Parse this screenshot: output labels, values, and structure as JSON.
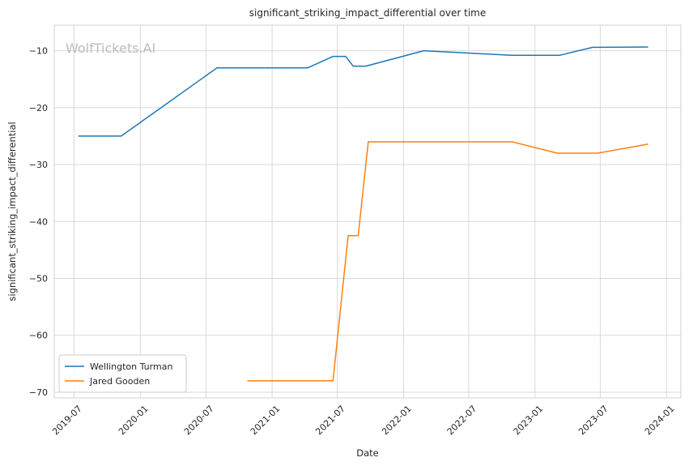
{
  "chart_data": {
    "type": "line",
    "title": "significant_striking_impact_differential over time",
    "xlabel": "Date",
    "ylabel": "significant_striking_impact_differential",
    "watermark": "WolfTickets.AI",
    "xlim": [
      "2019-05-07",
      "2024-02-10"
    ],
    "ylim": [
      -71,
      -5.5
    ],
    "x_ticks": [
      "2019-07",
      "2020-01",
      "2020-07",
      "2021-01",
      "2021-07",
      "2022-01",
      "2022-07",
      "2023-01",
      "2023-07",
      "2024-01"
    ],
    "y_ticks": [
      -10,
      -20,
      -30,
      -40,
      -50,
      -60,
      -70
    ],
    "y_tick_labels": [
      "−10",
      "−20",
      "−30",
      "−40",
      "−50",
      "−60",
      "−70"
    ],
    "grid": true,
    "legend_position": "lower-left",
    "series": [
      {
        "name": "Wellington Turman",
        "color": "#1f77b4",
        "points": [
          [
            "2019-07-13",
            -25.0
          ],
          [
            "2019-11-09",
            -25.0
          ],
          [
            "2020-08-01",
            -13.0
          ],
          [
            "2021-04-10",
            -13.0
          ],
          [
            "2021-06-19",
            -11.0
          ],
          [
            "2021-07-24",
            -11.0
          ],
          [
            "2021-08-14",
            -12.7
          ],
          [
            "2021-09-18",
            -12.7
          ],
          [
            "2022-02-26",
            -10.0
          ],
          [
            "2022-10-29",
            -10.8
          ],
          [
            "2023-03-11",
            -10.8
          ],
          [
            "2023-06-10",
            -9.4
          ],
          [
            "2023-11-11",
            -9.35
          ]
        ]
      },
      {
        "name": "Jared Gooden",
        "color": "#ff7f0e",
        "points": [
          [
            "2020-10-24",
            -68.0
          ],
          [
            "2021-06-19",
            -68.0
          ],
          [
            "2021-07-31",
            -42.5
          ],
          [
            "2021-08-28",
            -42.5
          ],
          [
            "2021-09-25",
            -26.0
          ],
          [
            "2022-10-29",
            -26.0
          ],
          [
            "2023-03-04",
            -28.0
          ],
          [
            "2023-06-24",
            -28.0
          ],
          [
            "2023-11-11",
            -26.4
          ]
        ]
      }
    ]
  }
}
